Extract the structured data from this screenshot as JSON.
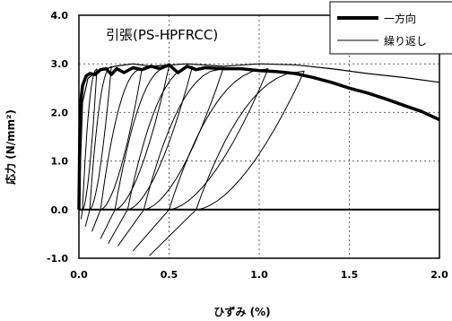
{
  "chart_data": {
    "type": "line",
    "title": "引張(PS-HPFRCC)",
    "xlabel": "ひずみ (%)",
    "ylabel": "応力 (N/mm²)",
    "xlim": [
      0.0,
      2.0
    ],
    "ylim": [
      -1.0,
      4.0
    ],
    "xticks": [
      "0.0",
      "0.5",
      "1.0",
      "1.5",
      "2.0"
    ],
    "yticks": [
      "-1.0",
      "0.0",
      "1.0",
      "2.0",
      "3.0",
      "4.0"
    ],
    "grid": true,
    "legend_position": "top-right",
    "legend": [
      "一方向",
      "繰り返し"
    ],
    "series": [
      {
        "name": "一方向",
        "style": "thick",
        "x": [
          0.0,
          0.005,
          0.01,
          0.02,
          0.04,
          0.06,
          0.09,
          0.12,
          0.15,
          0.18,
          0.21,
          0.25,
          0.3,
          0.35,
          0.4,
          0.45,
          0.5,
          0.55,
          0.6,
          0.65,
          0.7,
          0.8,
          0.9,
          1.0,
          1.1,
          1.2,
          1.3,
          1.4,
          1.5,
          1.6,
          1.7,
          1.8,
          1.9,
          2.0
        ],
        "y": [
          0.0,
          1.6,
          2.2,
          2.55,
          2.75,
          2.8,
          2.78,
          2.88,
          2.9,
          2.78,
          2.9,
          2.82,
          2.92,
          2.88,
          2.95,
          2.9,
          2.98,
          2.82,
          2.95,
          2.88,
          2.92,
          2.9,
          2.9,
          2.86,
          2.84,
          2.8,
          2.72,
          2.62,
          2.5,
          2.4,
          2.28,
          2.15,
          2.02,
          1.85
        ]
      },
      {
        "name": "繰り返し",
        "style": "thin",
        "x": [
          0.0,
          0.02,
          0.05,
          0.1,
          0.2,
          0.3,
          0.4,
          0.6,
          0.8,
          1.0,
          1.2,
          1.4,
          1.6,
          1.8,
          2.0
        ],
        "y": [
          0.0,
          2.2,
          2.7,
          2.85,
          2.95,
          3.0,
          2.95,
          3.0,
          2.95,
          3.0,
          2.98,
          2.9,
          2.8,
          2.72,
          2.62
        ]
      }
    ],
    "unload_loops": [
      {
        "peak": [
          0.1,
          2.9
        ],
        "zero": 0.02,
        "end": -0.2
      },
      {
        "peak": [
          0.18,
          2.95
        ],
        "zero": 0.06,
        "end": -0.35
      },
      {
        "peak": [
          0.35,
          2.9
        ],
        "zero": 0.12,
        "end": -0.45
      },
      {
        "peak": [
          0.5,
          2.95
        ],
        "zero": 0.2,
        "end": -0.6
      },
      {
        "peak": [
          0.63,
          2.95
        ],
        "zero": 0.27,
        "end": -0.7
      },
      {
        "peak": [
          0.8,
          2.9
        ],
        "zero": 0.36,
        "end": -0.75
      },
      {
        "peak": [
          1.05,
          2.9
        ],
        "zero": 0.5,
        "end": -0.85
      },
      {
        "peak": [
          1.25,
          2.85
        ],
        "zero": 0.65,
        "end": -0.95
      }
    ]
  }
}
